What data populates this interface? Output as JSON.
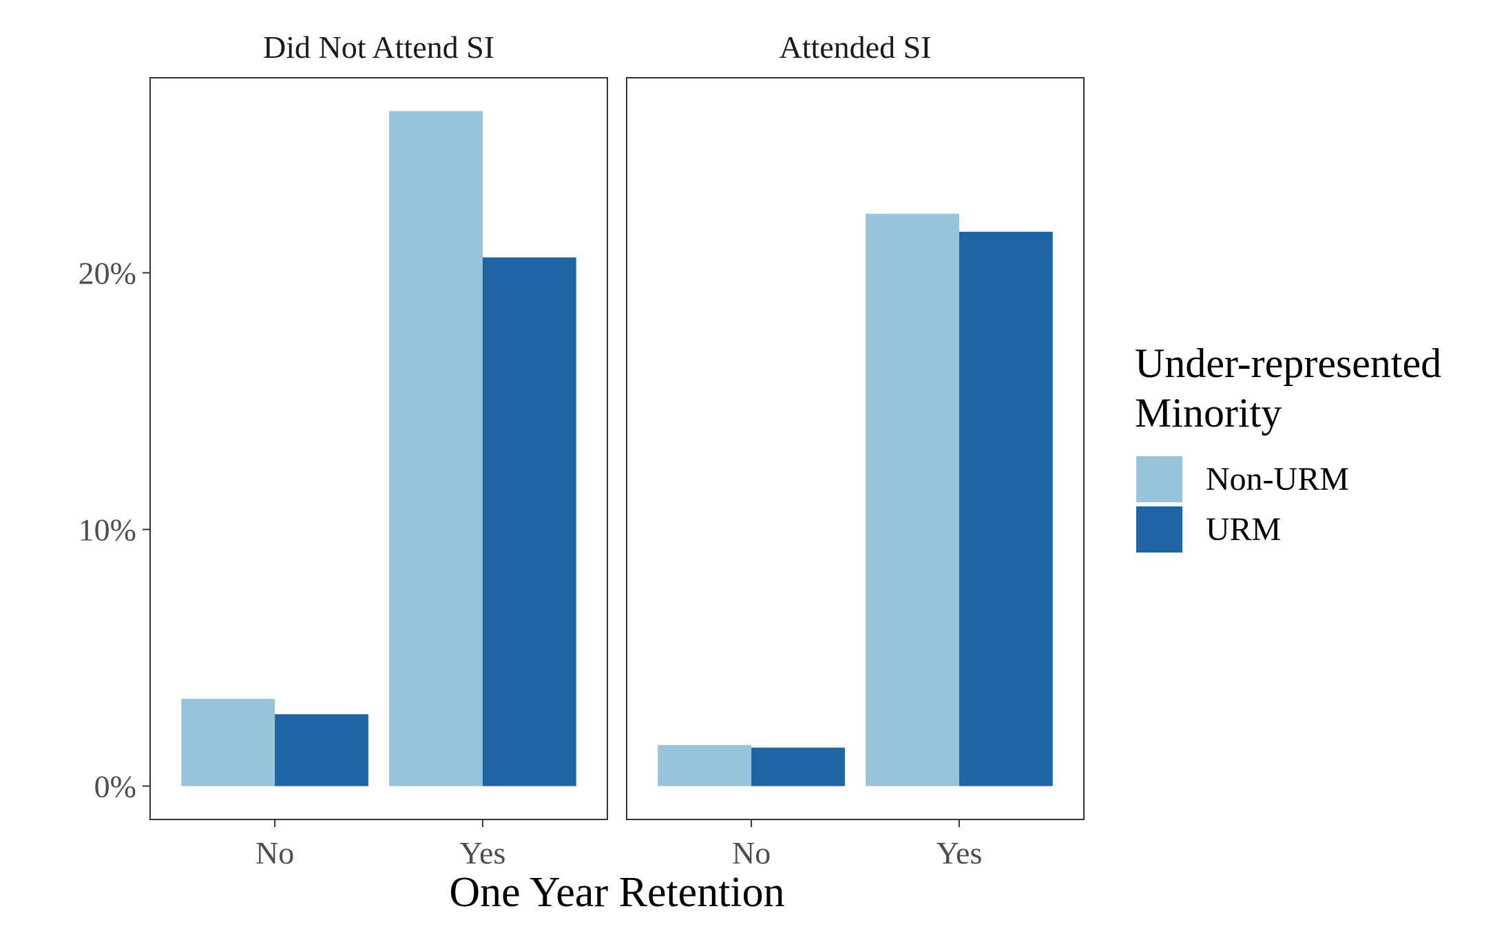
{
  "chart_data": {
    "type": "bar",
    "facets": [
      {
        "title": "Did Not Attend SI",
        "categories": [
          "No",
          "Yes"
        ],
        "series": [
          {
            "name": "Non-URM",
            "values": [
              3.4,
              26.3
            ]
          },
          {
            "name": "URM",
            "values": [
              2.8,
              20.6
            ]
          }
        ]
      },
      {
        "title": "Attended SI",
        "categories": [
          "No",
          "Yes"
        ],
        "series": [
          {
            "name": "Non-URM",
            "values": [
              1.6,
              22.3
            ]
          },
          {
            "name": "URM",
            "values": [
              1.5,
              21.6
            ]
          }
        ]
      }
    ],
    "xlabel": "One Year Retention",
    "ylabel": "",
    "y_ticks": [
      0,
      10,
      20
    ],
    "y_tick_labels": [
      "0%",
      "10%",
      "20%"
    ],
    "ylim": [
      -1.3,
      27.6
    ],
    "legend": {
      "title_lines": [
        "Under-represented",
        "Minority"
      ],
      "entries": [
        "Non-URM",
        "URM"
      ],
      "position": "right"
    },
    "colors": {
      "Non-URM": "#97c3dc",
      "URM": "#1f64a5"
    },
    "grid": false
  }
}
